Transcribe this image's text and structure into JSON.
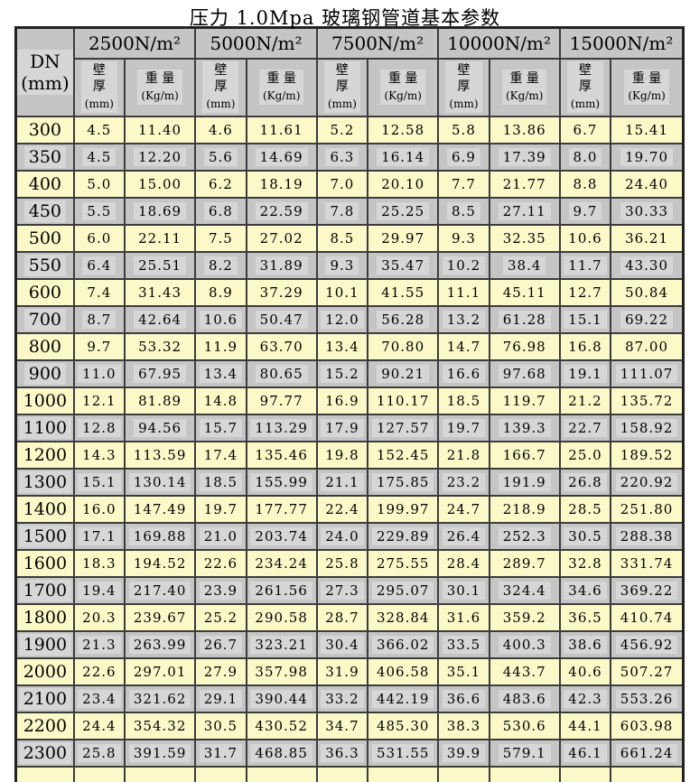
{
  "title": "压力 1.0Mpa 玻璃钢管道基本参数",
  "colors": {
    "row_yellow": "#fbf9c8",
    "row_gray": "#c5c5c5",
    "cell_highlight": "#d6d6d6",
    "grid_line": "#3c3c3c"
  },
  "table": {
    "dn_header": [
      "DN",
      "(mm)"
    ],
    "groups": [
      "2500N/m²",
      "5000N/m²",
      "7500N/m²",
      "10000N/m²",
      "15000N/m²"
    ],
    "wall_header": [
      "壁",
      "厚",
      "(mm)"
    ],
    "weight_header": [
      "重 量",
      "(Kg/m)"
    ],
    "rows": [
      [
        "300",
        "4.5",
        "11.40",
        "4.6",
        "11.61",
        "5.2",
        "12.58",
        "5.8",
        "13.86",
        "6.7",
        "15.41"
      ],
      [
        "350",
        "4.5",
        "12.20",
        "5.6",
        "14.69",
        "6.3",
        "16.14",
        "6.9",
        "17.39",
        "8.0",
        "19.70"
      ],
      [
        "400",
        "5.0",
        "15.00",
        "6.2",
        "18.19",
        "7.0",
        "20.10",
        "7.7",
        "21.77",
        "8.8",
        "24.40"
      ],
      [
        "450",
        "5.5",
        "18.69",
        "6.8",
        "22.59",
        "7.8",
        "25.25",
        "8.5",
        "27.11",
        "9.7",
        "30.33"
      ],
      [
        "500",
        "6.0",
        "22.11",
        "7.5",
        "27.02",
        "8.5",
        "29.97",
        "9.3",
        "32.35",
        "10.6",
        "36.21"
      ],
      [
        "550",
        "6.4",
        "25.51",
        "8.2",
        "31.89",
        "9.3",
        "35.47",
        "10.2",
        "38.4",
        "11.7",
        "43.30"
      ],
      [
        "600",
        "7.4",
        "31.43",
        "8.9",
        "37.29",
        "10.1",
        "41.55",
        "11.1",
        "45.11",
        "12.7",
        "50.84"
      ],
      [
        "700",
        "8.7",
        "42.64",
        "10.6",
        "50.47",
        "12.0",
        "56.28",
        "13.2",
        "61.28",
        "15.1",
        "69.22"
      ],
      [
        "800",
        "9.7",
        "53.32",
        "11.9",
        "63.70",
        "13.4",
        "70.80",
        "14.7",
        "76.98",
        "16.8",
        "87.00"
      ],
      [
        "900",
        "11.0",
        "67.95",
        "13.4",
        "80.65",
        "15.2",
        "90.21",
        "16.6",
        "97.68",
        "19.1",
        "111.07"
      ],
      [
        "1000",
        "12.1",
        "81.89",
        "14.8",
        "97.77",
        "16.9",
        "110.17",
        "18.5",
        "119.7",
        "21.2",
        "135.72"
      ],
      [
        "1100",
        "12.8",
        "94.56",
        "15.7",
        "113.29",
        "17.9",
        "127.57",
        "19.7",
        "139.3",
        "22.7",
        "158.92"
      ],
      [
        "1200",
        "14.3",
        "113.59",
        "17.4",
        "135.46",
        "19.8",
        "152.45",
        "21.8",
        "166.7",
        "25.0",
        "189.52"
      ],
      [
        "1300",
        "15.1",
        "130.14",
        "18.5",
        "155.99",
        "21.1",
        "175.85",
        "23.2",
        "191.9",
        "26.8",
        "220.92"
      ],
      [
        "1400",
        "16.0",
        "147.49",
        "19.7",
        "177.77",
        "22.4",
        "199.97",
        "24.7",
        "218.9",
        "28.5",
        "251.80"
      ],
      [
        "1500",
        "17.1",
        "169.88",
        "21.0",
        "203.74",
        "24.0",
        "229.89",
        "26.4",
        "252.3",
        "30.5",
        "288.38"
      ],
      [
        "1600",
        "18.3",
        "194.52",
        "22.6",
        "234.24",
        "25.8",
        "275.55",
        "28.4",
        "289.7",
        "32.8",
        "331.74"
      ],
      [
        "1700",
        "19.4",
        "217.40",
        "23.9",
        "261.56",
        "27.3",
        "295.07",
        "30.1",
        "324.4",
        "34.6",
        "369.22"
      ],
      [
        "1800",
        "20.3",
        "239.67",
        "25.2",
        "290.58",
        "28.7",
        "328.84",
        "31.6",
        "359.2",
        "36.5",
        "410.74"
      ],
      [
        "1900",
        "21.3",
        "263.99",
        "26.7",
        "323.21",
        "30.4",
        "366.02",
        "33.5",
        "400.3",
        "38.6",
        "456.92"
      ],
      [
        "2000",
        "22.6",
        "297.01",
        "27.9",
        "357.98",
        "31.9",
        "406.58",
        "35.1",
        "443.7",
        "40.6",
        "507.27"
      ],
      [
        "2100",
        "23.4",
        "321.62",
        "29.1",
        "390.44",
        "33.2",
        "442.19",
        "36.6",
        "483.6",
        "42.3",
        "553.26"
      ],
      [
        "2200",
        "24.4",
        "354.32",
        "30.5",
        "430.52",
        "34.7",
        "485.30",
        "38.3",
        "530.6",
        "44.1",
        "603.98"
      ],
      [
        "2300",
        "25.8",
        "391.59",
        "31.7",
        "468.85",
        "36.3",
        "531.55",
        "39.9",
        "579.1",
        "46.1",
        "661.24"
      ]
    ]
  }
}
